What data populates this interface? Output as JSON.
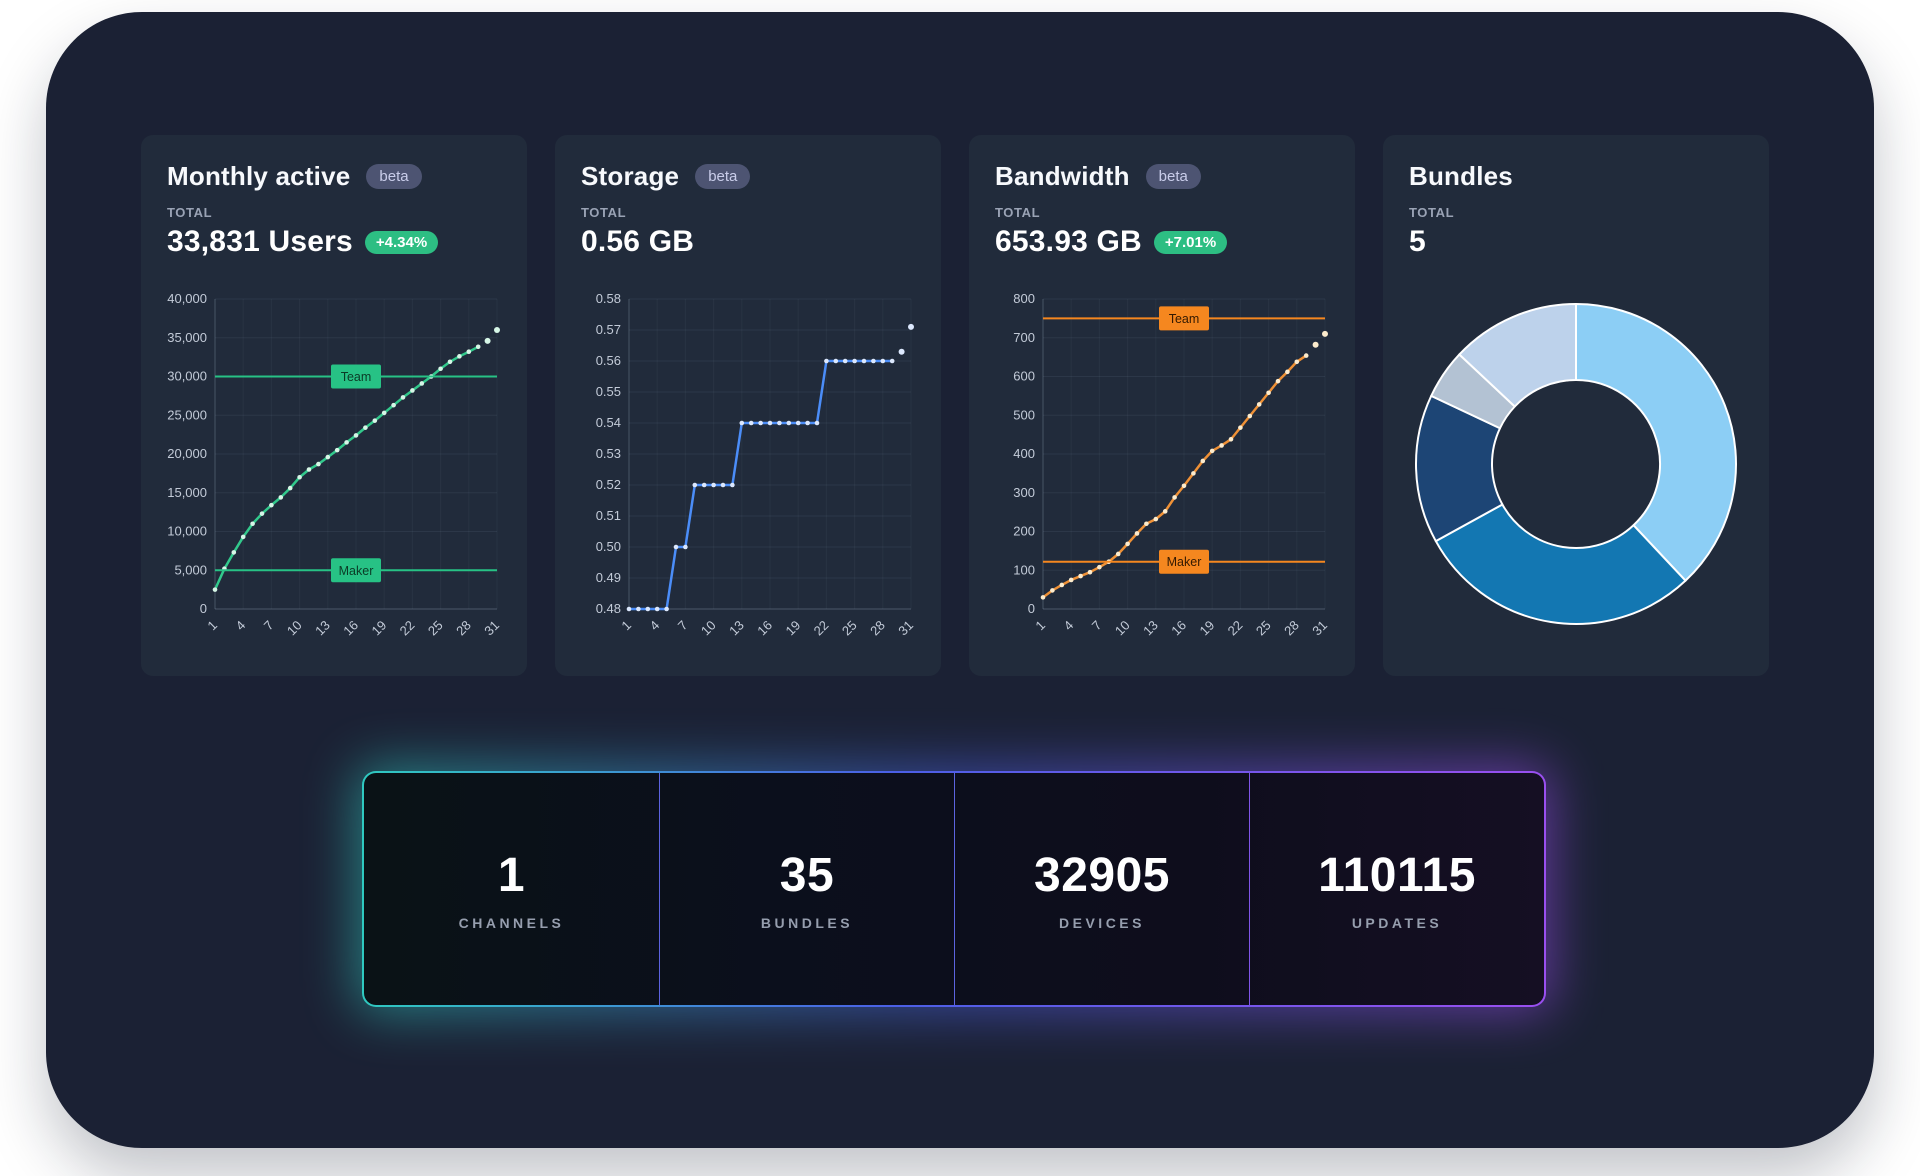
{
  "page": {
    "background": "#ffffff",
    "panel_color": "#1b2134",
    "card_color": "#212b3b"
  },
  "cards": [
    {
      "title": "Monthly active",
      "badge": "beta",
      "total_label": "TOTAL",
      "total_value": "33,831 Users",
      "delta": "+4.34%",
      "delta_color": "#2dbe83"
    },
    {
      "title": "Storage",
      "badge": "beta",
      "total_label": "TOTAL",
      "total_value": "0.56 GB"
    },
    {
      "title": "Bandwidth",
      "badge": "beta",
      "total_label": "TOTAL",
      "total_value": "653.93 GB",
      "delta": "+7.01%",
      "delta_color": "#2dbe83"
    },
    {
      "title": "Bundles",
      "total_label": "TOTAL",
      "total_value": "5"
    }
  ],
  "chart_data": [
    {
      "type": "line",
      "title": "Monthly active users by day",
      "x": [
        1,
        2,
        3,
        4,
        5,
        6,
        7,
        8,
        9,
        10,
        11,
        12,
        13,
        14,
        15,
        16,
        17,
        18,
        19,
        20,
        21,
        22,
        23,
        24,
        25,
        26,
        27,
        28,
        29,
        30,
        31
      ],
      "x_tick_days": [
        1,
        4,
        7,
        10,
        13,
        16,
        19,
        22,
        25,
        28,
        31
      ],
      "x_tick_labels": [
        "1",
        "4",
        "7",
        "10",
        "13",
        "16",
        "19",
        "22",
        "25",
        "28",
        "31"
      ],
      "ylim": [
        0,
        40000
      ],
      "ytick_values": [
        0,
        5000,
        10000,
        15000,
        20000,
        25000,
        30000,
        35000,
        40000
      ],
      "ytick_labels": [
        "0",
        "5,000",
        "10,000",
        "15,000",
        "20,000",
        "25,000",
        "30,000",
        "35,000",
        "40,000"
      ],
      "grid": true,
      "series": [
        {
          "name": "users",
          "color": "#32c98c",
          "dot_color": "#d7f7e7",
          "values": [
            2500,
            5200,
            7300,
            9300,
            11000,
            12300,
            13400,
            14400,
            15600,
            17000,
            18000,
            18700,
            19600,
            20500,
            21500,
            22400,
            23400,
            24300,
            25300,
            26300,
            27300,
            28200,
            29100,
            30000,
            31000,
            31900,
            32600,
            33200,
            33831,
            34600,
            36000
          ],
          "line_end_index": 28
        }
      ],
      "ref_lines": [
        {
          "label": "Team",
          "value": 30000,
          "color": "#27c285",
          "text_color": "#0b3b26"
        },
        {
          "label": "Maker",
          "value": 5000,
          "color": "#27c285",
          "text_color": "#0b3b26"
        }
      ]
    },
    {
      "type": "line",
      "title": "Storage (GB) by day",
      "x": [
        1,
        2,
        3,
        4,
        5,
        6,
        7,
        8,
        9,
        10,
        11,
        12,
        13,
        14,
        15,
        16,
        17,
        18,
        19,
        20,
        21,
        22,
        23,
        24,
        25,
        26,
        27,
        28,
        29,
        30,
        31
      ],
      "x_tick_days": [
        1,
        4,
        7,
        10,
        13,
        16,
        19,
        22,
        25,
        28,
        31
      ],
      "x_tick_labels": [
        "1",
        "4",
        "7",
        "10",
        "13",
        "16",
        "19",
        "22",
        "25",
        "28",
        "31"
      ],
      "ylim": [
        0.48,
        0.58
      ],
      "ytick_values": [
        0.48,
        0.49,
        0.5,
        0.51,
        0.52,
        0.53,
        0.54,
        0.55,
        0.56,
        0.57,
        0.58
      ],
      "ytick_labels": [
        "0.48",
        "0.49",
        "0.50",
        "0.51",
        "0.52",
        "0.53",
        "0.54",
        "0.55",
        "0.56",
        "0.57",
        "0.58"
      ],
      "grid": true,
      "series": [
        {
          "name": "storage_gb",
          "color": "#4b8df8",
          "dot_color": "#dce8fd",
          "values": [
            0.48,
            0.48,
            0.48,
            0.48,
            0.48,
            0.5,
            0.5,
            0.52,
            0.52,
            0.52,
            0.52,
            0.52,
            0.54,
            0.54,
            0.54,
            0.54,
            0.54,
            0.54,
            0.54,
            0.54,
            0.54,
            0.56,
            0.56,
            0.56,
            0.56,
            0.56,
            0.56,
            0.56,
            0.56,
            0.563,
            0.571
          ],
          "line_end_index": 28
        }
      ],
      "ref_lines": []
    },
    {
      "type": "line",
      "title": "Bandwidth (GB) by day",
      "x": [
        1,
        2,
        3,
        4,
        5,
        6,
        7,
        8,
        9,
        10,
        11,
        12,
        13,
        14,
        15,
        16,
        17,
        18,
        19,
        20,
        21,
        22,
        23,
        24,
        25,
        26,
        27,
        28,
        29,
        30,
        31
      ],
      "x_tick_days": [
        1,
        4,
        7,
        10,
        13,
        16,
        19,
        22,
        25,
        28,
        31
      ],
      "x_tick_labels": [
        "1",
        "4",
        "7",
        "10",
        "13",
        "16",
        "19",
        "22",
        "25",
        "28",
        "31"
      ],
      "ylim": [
        0,
        800
      ],
      "ytick_values": [
        0,
        100,
        200,
        300,
        400,
        500,
        600,
        700,
        800
      ],
      "ytick_labels": [
        "0",
        "100",
        "200",
        "300",
        "400",
        "500",
        "600",
        "700",
        "800"
      ],
      "grid": true,
      "series": [
        {
          "name": "bandwidth_gb",
          "color": "#ef9136",
          "dot_color": "#fdeccd",
          "values": [
            30,
            48,
            62,
            75,
            85,
            95,
            108,
            122,
            142,
            168,
            195,
            220,
            232,
            252,
            288,
            318,
            350,
            382,
            408,
            422,
            438,
            468,
            498,
            528,
            558,
            588,
            612,
            638,
            654,
            682,
            710
          ],
          "line_end_index": 28
        }
      ],
      "ref_lines": [
        {
          "label": "Team",
          "value": 750,
          "color": "#f5871f",
          "text_color": "#331a02"
        },
        {
          "label": "Maker",
          "value": 122,
          "color": "#f5871f",
          "text_color": "#331a02"
        }
      ]
    },
    {
      "type": "donut",
      "title": "Bundles distribution",
      "slices": [
        {
          "value": 38,
          "color": "#8ccef5"
        },
        {
          "value": 29,
          "color": "#1377b2"
        },
        {
          "value": 15,
          "color": "#1d4575"
        },
        {
          "value": 5,
          "color": "#b3c2d3"
        },
        {
          "value": 13,
          "color": "#bdd2eb"
        }
      ],
      "stroke_color": "#ffffff"
    }
  ],
  "stats": [
    {
      "value": "1",
      "label": "CHANNELS"
    },
    {
      "value": "35",
      "label": "BUNDLES"
    },
    {
      "value": "32905",
      "label": "DEVICES"
    },
    {
      "value": "110115",
      "label": "UPDATES"
    }
  ],
  "statsbar_colors": {
    "left": "#2fd4c2",
    "middle": "#4e63e9",
    "right": "#a24ef5"
  }
}
